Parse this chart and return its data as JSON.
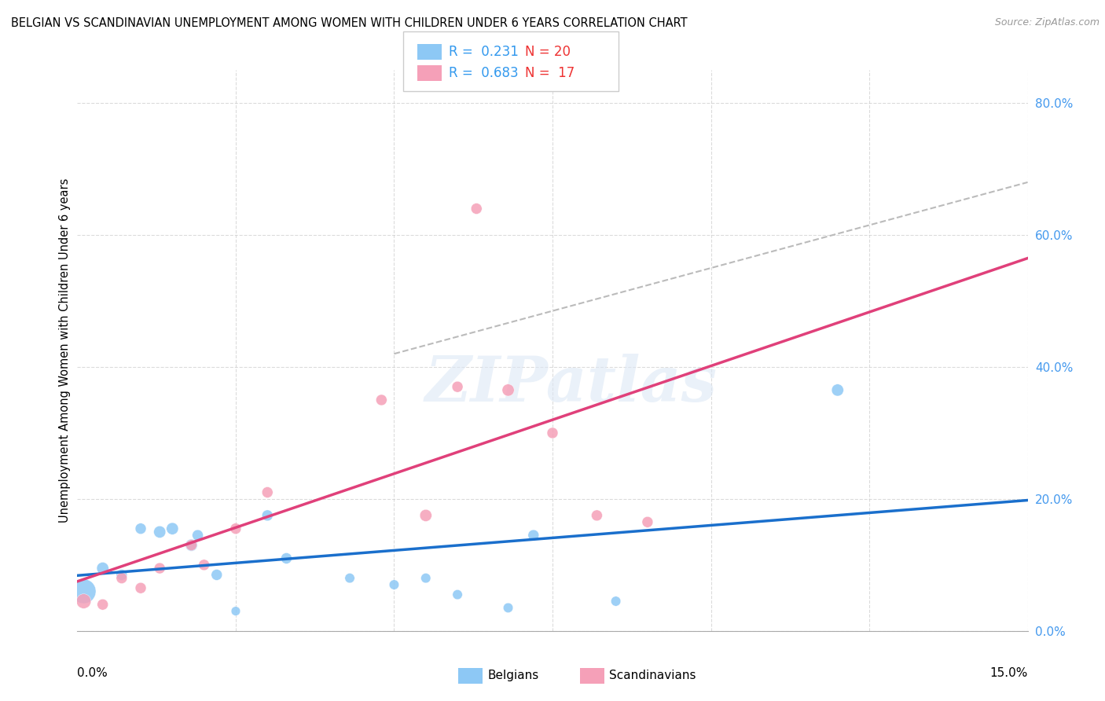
{
  "title": "BELGIAN VS SCANDINAVIAN UNEMPLOYMENT AMONG WOMEN WITH CHILDREN UNDER 6 YEARS CORRELATION CHART",
  "source": "Source: ZipAtlas.com",
  "ylabel": "Unemployment Among Women with Children Under 6 years",
  "xlim": [
    0.0,
    0.15
  ],
  "ylim": [
    0.0,
    0.85
  ],
  "ytick_values": [
    0.0,
    0.2,
    0.4,
    0.6,
    0.8
  ],
  "belgians_R": "0.231",
  "belgians_N": "20",
  "scandinavians_R": "0.683",
  "scandinavians_N": "17",
  "belgian_color": "#8DC8F5",
  "scandinavian_color": "#F5A0B8",
  "belgian_line_color": "#1A6FCC",
  "scandinavian_line_color": "#E0407A",
  "belgian_x": [
    0.001,
    0.004,
    0.007,
    0.01,
    0.013,
    0.015,
    0.018,
    0.019,
    0.022,
    0.025,
    0.03,
    0.033,
    0.043,
    0.05,
    0.055,
    0.06,
    0.068,
    0.072,
    0.085,
    0.12
  ],
  "belgian_y": [
    0.06,
    0.095,
    0.085,
    0.155,
    0.15,
    0.155,
    0.13,
    0.145,
    0.085,
    0.03,
    0.175,
    0.11,
    0.08,
    0.07,
    0.08,
    0.055,
    0.035,
    0.145,
    0.045,
    0.365
  ],
  "belgian_sizes": [
    500,
    120,
    100,
    100,
    120,
    120,
    120,
    100,
    100,
    70,
    100,
    100,
    80,
    80,
    80,
    80,
    80,
    100,
    80,
    120
  ],
  "scandinavian_x": [
    0.001,
    0.004,
    0.007,
    0.01,
    0.013,
    0.018,
    0.02,
    0.025,
    0.03,
    0.048,
    0.055,
    0.06,
    0.063,
    0.068,
    0.075,
    0.082,
    0.09
  ],
  "scandinavian_y": [
    0.045,
    0.04,
    0.08,
    0.065,
    0.095,
    0.13,
    0.1,
    0.155,
    0.21,
    0.35,
    0.175,
    0.37,
    0.64,
    0.365,
    0.3,
    0.175,
    0.165
  ],
  "scandinavian_sizes": [
    180,
    100,
    100,
    100,
    100,
    100,
    100,
    100,
    100,
    100,
    120,
    100,
    100,
    120,
    100,
    100,
    100
  ],
  "diag_line_x": [
    0.05,
    0.15
  ],
  "diag_line_y": [
    0.42,
    0.68
  ],
  "watermark_text": "ZIPatlas",
  "background_color": "#FFFFFF",
  "grid_color": "#CCCCCC",
  "grid_alpha": 0.7
}
